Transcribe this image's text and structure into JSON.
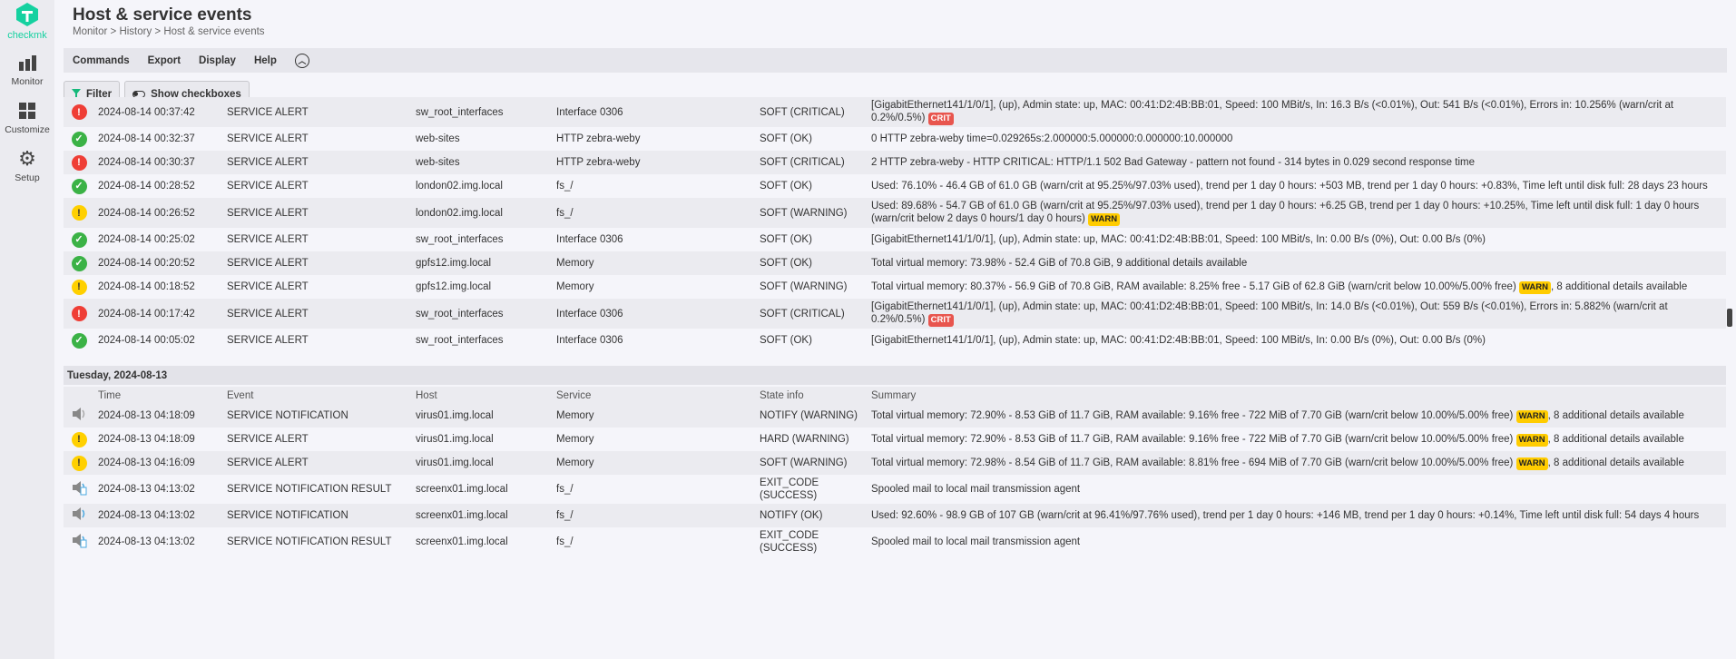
{
  "sidebar": {
    "logo": "checkmk",
    "items": [
      {
        "label": "Monitor",
        "icon": "bar-chart-icon"
      },
      {
        "label": "Customize",
        "icon": "grid-icon"
      },
      {
        "label": "Setup",
        "icon": "gear-icon"
      }
    ]
  },
  "header": {
    "title": "Host & service events",
    "breadcrumb": "Monitor > History > Host & service events"
  },
  "menu": [
    "Commands",
    "Export",
    "Display",
    "Help"
  ],
  "toolbar": {
    "filter": "Filter",
    "checkboxes": "Show checkboxes"
  },
  "colors": {
    "crit": "#ef3e36",
    "ok": "#3bb246",
    "warn": "#ffd000",
    "brand": "#15d1a0"
  },
  "columns": [
    "Time",
    "Event",
    "Host",
    "Service",
    "State info",
    "Summary"
  ],
  "groups": [
    {
      "day": "",
      "show_header": false,
      "rows": [
        {
          "icon": "crit",
          "time": "2024-08-14 00:37:42",
          "event": "SERVICE ALERT",
          "host": "sw_root_interfaces",
          "service": "Interface 0306",
          "state": "SOFT (CRITICAL)",
          "summary": "[GigabitEthernet141/1/0/1], (up), Admin state: up, MAC: 00:41:D2:4B:BB:01, Speed: 100 MBit/s, In: 16.3 B/s (<0.01%), Out: 541 B/s (<0.01%), Errors in: 10.256% (warn/crit at 0.2%/0.5%)",
          "badge": "CRIT",
          "tail": ""
        },
        {
          "icon": "ok",
          "time": "2024-08-14 00:32:37",
          "event": "SERVICE ALERT",
          "host": "web-sites",
          "service": "HTTP zebra-weby",
          "state": "SOFT (OK)",
          "summary": "0 HTTP zebra-weby time=0.029265s:2.000000:5.000000:0.000000:10.000000",
          "badge": "",
          "tail": ""
        },
        {
          "icon": "crit",
          "time": "2024-08-14 00:30:37",
          "event": "SERVICE ALERT",
          "host": "web-sites",
          "service": "HTTP zebra-weby",
          "state": "SOFT (CRITICAL)",
          "summary": "2 HTTP zebra-weby - HTTP CRITICAL: HTTP/1.1 502 Bad Gateway - pattern not found - 314 bytes in 0.029 second response time",
          "badge": "",
          "tail": ""
        },
        {
          "icon": "ok",
          "time": "2024-08-14 00:28:52",
          "event": "SERVICE ALERT",
          "host": "london02.img.local",
          "service": "fs_/",
          "state": "SOFT (OK)",
          "summary": "Used: 76.10% - 46.4 GB of 61.0 GB (warn/crit at 95.25%/97.03% used), trend per 1 day 0 hours: +503 MB, trend per 1 day 0 hours: +0.83%, Time left until disk full: 28 days 23 hours",
          "badge": "",
          "tail": ""
        },
        {
          "icon": "warn",
          "time": "2024-08-14 00:26:52",
          "event": "SERVICE ALERT",
          "host": "london02.img.local",
          "service": "fs_/",
          "state": "SOFT (WARNING)",
          "summary": "Used: 89.68% - 54.7 GB of 61.0 GB (warn/crit at 95.25%/97.03% used), trend per 1 day 0 hours: +6.25 GB, trend per 1 day 0 hours: +10.25%, Time left until disk full: 1 day 0 hours (warn/crit below 2 days 0 hours/1 day 0 hours)",
          "badge": "WARN",
          "tail": ""
        },
        {
          "icon": "ok",
          "time": "2024-08-14 00:25:02",
          "event": "SERVICE ALERT",
          "host": "sw_root_interfaces",
          "service": "Interface 0306",
          "state": "SOFT (OK)",
          "summary": "[GigabitEthernet141/1/0/1], (up), Admin state: up, MAC: 00:41:D2:4B:BB:01, Speed: 100 MBit/s, In: 0.00 B/s (0%), Out: 0.00 B/s (0%)",
          "badge": "",
          "tail": ""
        },
        {
          "icon": "ok",
          "time": "2024-08-14 00:20:52",
          "event": "SERVICE ALERT",
          "host": "gpfs12.img.local",
          "service": "Memory",
          "state": "SOFT (OK)",
          "summary": "Total virtual memory: 73.98% - 52.4 GiB of 70.8 GiB, 9 additional details available",
          "badge": "",
          "tail": ""
        },
        {
          "icon": "warn",
          "time": "2024-08-14 00:18:52",
          "event": "SERVICE ALERT",
          "host": "gpfs12.img.local",
          "service": "Memory",
          "state": "SOFT (WARNING)",
          "summary": "Total virtual memory: 80.37% - 56.9 GiB of 70.8 GiB, RAM available: 8.25% free - 5.17 GiB of 62.8 GiB (warn/crit below 10.00%/5.00% free)",
          "badge": "WARN",
          "tail": ", 8 additional details available"
        },
        {
          "icon": "crit",
          "time": "2024-08-14 00:17:42",
          "event": "SERVICE ALERT",
          "host": "sw_root_interfaces",
          "service": "Interface 0306",
          "state": "SOFT (CRITICAL)",
          "summary": "[GigabitEthernet141/1/0/1], (up), Admin state: up, MAC: 00:41:D2:4B:BB:01, Speed: 100 MBit/s, In: 14.0 B/s (<0.01%), Out: 559 B/s (<0.01%), Errors in: 5.882% (warn/crit at 0.2%/0.5%)",
          "badge": "CRIT",
          "tail": ""
        },
        {
          "icon": "ok",
          "time": "2024-08-14 00:05:02",
          "event": "SERVICE ALERT",
          "host": "sw_root_interfaces",
          "service": "Interface 0306",
          "state": "SOFT (OK)",
          "summary": "[GigabitEthernet141/1/0/1], (up), Admin state: up, MAC: 00:41:D2:4B:BB:01, Speed: 100 MBit/s, In: 0.00 B/s (0%), Out: 0.00 B/s (0%)",
          "badge": "",
          "tail": ""
        }
      ]
    },
    {
      "day": "Tuesday, 2024-08-13",
      "show_header": true,
      "rows": [
        {
          "icon": "notify",
          "time": "2024-08-13 04:18:09",
          "event": "SERVICE NOTIFICATION",
          "host": "virus01.img.local",
          "service": "Memory",
          "state": "NOTIFY (WARNING)",
          "summary": "Total virtual memory: 72.90% - 8.53 GiB of 11.7 GiB, RAM available: 9.16% free - 722 MiB of 7.70 GiB (warn/crit below 10.00%/5.00% free)",
          "badge": "WARN",
          "tail": ", 8 additional details available"
        },
        {
          "icon": "warn",
          "time": "2024-08-13 04:18:09",
          "event": "SERVICE ALERT",
          "host": "virus01.img.local",
          "service": "Memory",
          "state": "HARD (WARNING)",
          "summary": "Total virtual memory: 72.90% - 8.53 GiB of 11.7 GiB, RAM available: 9.16% free - 722 MiB of 7.70 GiB (warn/crit below 10.00%/5.00% free)",
          "badge": "WARN",
          "tail": ", 8 additional details available"
        },
        {
          "icon": "warn",
          "time": "2024-08-13 04:16:09",
          "event": "SERVICE ALERT",
          "host": "virus01.img.local",
          "service": "Memory",
          "state": "SOFT (WARNING)",
          "summary": "Total virtual memory: 72.98% - 8.54 GiB of 11.7 GiB, RAM available: 8.81% free - 694 MiB of 7.70 GiB (warn/crit below 10.00%/5.00% free)",
          "badge": "WARN",
          "tail": ", 8 additional details available"
        },
        {
          "icon": "notify-result",
          "time": "2024-08-13 04:13:02",
          "event": "SERVICE NOTIFICATION RESULT",
          "host": "screenx01.img.local",
          "service": "fs_/",
          "state": "EXIT_CODE (SUCCESS)",
          "summary": "Spooled mail to local mail transmission agent",
          "badge": "",
          "tail": ""
        },
        {
          "icon": "notify-ok",
          "time": "2024-08-13 04:13:02",
          "event": "SERVICE NOTIFICATION",
          "host": "screenx01.img.local",
          "service": "fs_/",
          "state": "NOTIFY (OK)",
          "summary": "Used: 92.60% - 98.9 GB of 107 GB (warn/crit at 96.41%/97.76% used), trend per 1 day 0 hours: +146 MB, trend per 1 day 0 hours: +0.14%, Time left until disk full: 54 days 4 hours",
          "badge": "",
          "tail": ""
        },
        {
          "icon": "notify-result",
          "time": "2024-08-13 04:13:02",
          "event": "SERVICE NOTIFICATION RESULT",
          "host": "screenx01.img.local",
          "service": "fs_/",
          "state": "EXIT_CODE (SUCCESS)",
          "summary": "Spooled mail to local mail transmission agent",
          "badge": "",
          "tail": ""
        }
      ]
    }
  ]
}
